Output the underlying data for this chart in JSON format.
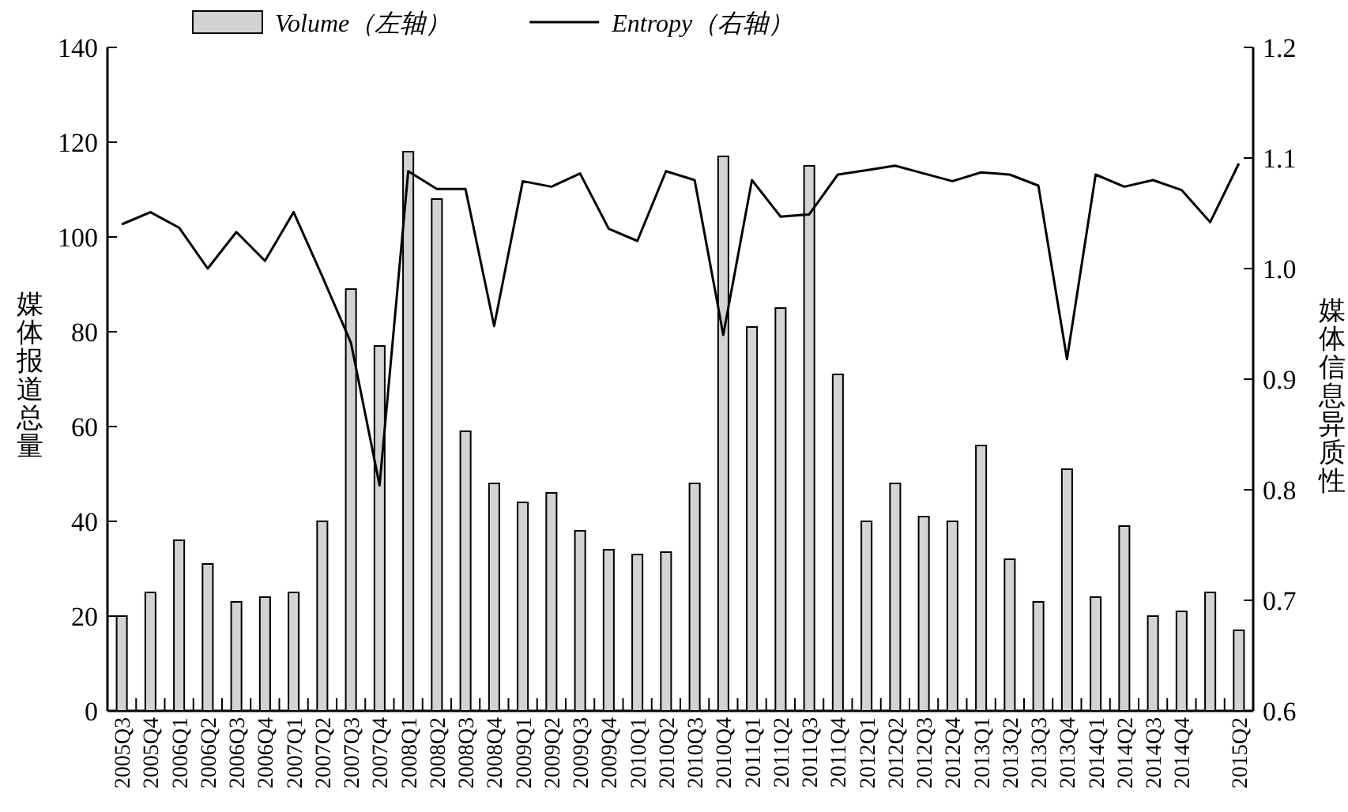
{
  "chart_data": {
    "type": "bar",
    "categories": [
      "2005Q3",
      "2005Q4",
      "2006Q1",
      "2006Q2",
      "2006Q3",
      "2006Q4",
      "2007Q1",
      "2007Q2",
      "2007Q3",
      "2007Q4",
      "2008Q1",
      "2008Q2",
      "2008Q3",
      "2008Q4",
      "2009Q1",
      "2009Q2",
      "2009Q3",
      "2009Q4",
      "2010Q1",
      "2010Q2",
      "2010Q3",
      "2010Q4",
      "2011Q1",
      "2011Q2",
      "2011Q3",
      "2011Q4",
      "2012Q1",
      "2012Q2",
      "2012Q3",
      "2012Q4",
      "2013Q1",
      "2013Q2",
      "2013Q3",
      "2013Q4",
      "2014Q1",
      "2014Q2",
      "2014Q3",
      "2014Q4",
      null,
      "2015Q2"
    ],
    "series": [
      {
        "name": "Volume（左轴）",
        "color": "#d3d3d3",
        "values": [
          20,
          25,
          36,
          31,
          23,
          24,
          25,
          40,
          89,
          77,
          118,
          108,
          59,
          48,
          44,
          46,
          38,
          34,
          33,
          33.5,
          48,
          117,
          81,
          85,
          115,
          71,
          40,
          48,
          41,
          40,
          56,
          32,
          23,
          51,
          24,
          39,
          20,
          21,
          25,
          17
        ]
      },
      {
        "name": "Entropy（右轴）",
        "type": "line",
        "axis": "y2",
        "color": "#000000",
        "values": [
          1.04,
          1.051,
          1.037,
          1.0,
          1.033,
          1.007,
          1.051,
          0.993,
          0.933,
          0.804,
          1.088,
          1.072,
          1.072,
          0.948,
          1.079,
          1.074,
          1.086,
          1.036,
          1.025,
          1.088,
          1.08,
          0.94,
          1.08,
          1.047,
          1.049,
          1.085,
          1.089,
          1.093,
          1.086,
          1.079,
          1.087,
          1.085,
          1.075,
          0.918,
          1.085,
          1.074,
          1.08,
          1.071,
          1.042,
          1.095
        ]
      }
    ],
    "ylabel": "媒体报道总量",
    "y2label": "媒体信息异质性",
    "ylim": [
      0,
      140
    ],
    "yticks": [
      0,
      20,
      40,
      60,
      80,
      100,
      120,
      140
    ],
    "y2lim": [
      0.6,
      1.2
    ],
    "y2ticks": [
      0.6,
      0.7,
      0.8,
      0.9,
      {
        "value": 1,
        "label": "1.0"
      },
      1.1,
      1.2
    ],
    "legend": "top",
    "grid": false,
    "marker": "none",
    "line_style": "solid"
  }
}
